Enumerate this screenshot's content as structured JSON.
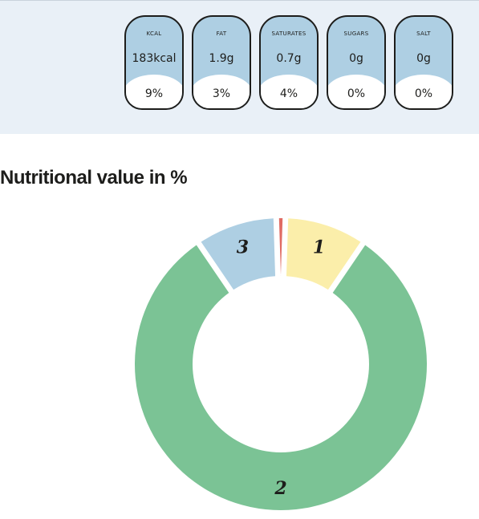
{
  "nutrition": {
    "items": [
      {
        "label": "KCAL",
        "value": "183kcal",
        "percent": "9%"
      },
      {
        "label": "FAT",
        "value": "1.9g",
        "percent": "3%"
      },
      {
        "label": "SATURATES",
        "value": "0.7g",
        "percent": "4%"
      },
      {
        "label": "SUGARS",
        "value": "0g",
        "percent": "0%"
      },
      {
        "label": "SALT",
        "value": "0g",
        "percent": "0%"
      }
    ]
  },
  "section": {
    "title": "Nutritional value in %"
  },
  "colors": {
    "pill_fill": "#aecfe3",
    "band_bg": "#e9f0f7",
    "slice_1": "#fbeeaa",
    "slice_2": "#7bc395",
    "slice_3": "#aecfe3",
    "slice_4": "#e06b63"
  },
  "chart_data": {
    "type": "pie",
    "title": "Nutritional value in %",
    "donut": true,
    "slices": [
      {
        "label": "1",
        "value": 9,
        "color": "#fbeeaa"
      },
      {
        "label": "2",
        "value": 81,
        "color": "#7bc395"
      },
      {
        "label": "3",
        "value": 9,
        "color": "#aecfe3"
      },
      {
        "label": "",
        "value": 1,
        "color": "#e06b63"
      }
    ]
  }
}
